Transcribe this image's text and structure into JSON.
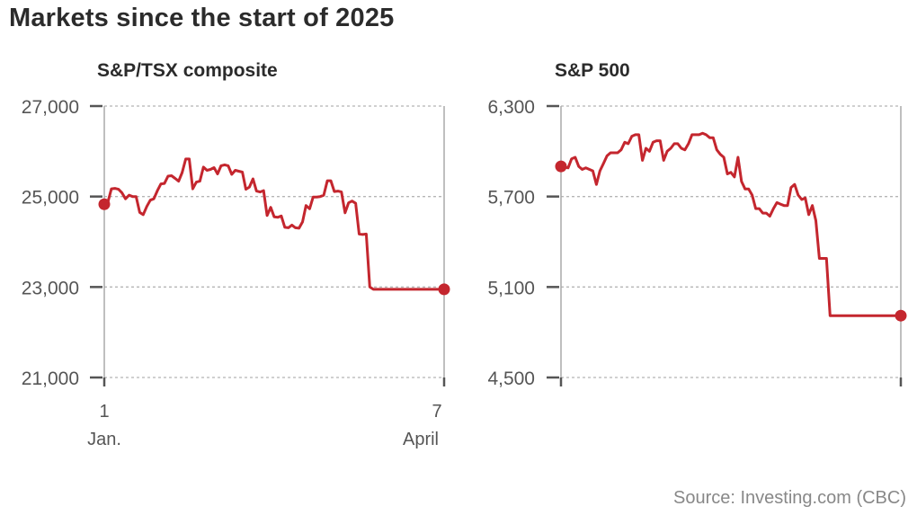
{
  "title": "Markets since the start of 2025",
  "source": "Source: Investing.com (CBC)",
  "colors": {
    "line": "#c4262e",
    "grid": "#b5b5b5",
    "text": "#2b2b2b"
  },
  "chart_data": [
    {
      "type": "line",
      "title": "S&P/TSX composite",
      "ylim": [
        21000,
        27000
      ],
      "yticks": [
        27000,
        25000,
        23000,
        21000
      ],
      "ytick_labels": [
        "27,000",
        "25,000",
        "23,000",
        "21,000"
      ],
      "xlim": [
        0,
        96
      ],
      "xticks": [
        {
          "x": 0,
          "day": "1",
          "month": "Jan."
        },
        {
          "x": 96,
          "day": "7",
          "month": "April"
        }
      ],
      "grid": true,
      "series": [
        {
          "x": [
            0,
            1,
            2,
            3,
            4,
            5,
            6,
            7,
            8,
            9,
            10,
            11,
            12,
            13,
            14,
            15,
            16,
            17,
            18,
            19,
            20,
            21,
            22,
            23,
            24,
            25,
            26,
            27,
            28,
            29,
            30,
            31,
            32,
            33,
            34,
            35,
            36,
            37,
            38,
            39,
            40,
            41,
            42,
            43,
            44,
            45,
            46,
            47,
            48,
            49,
            50,
            51,
            52,
            53,
            54,
            55,
            56,
            57,
            58,
            59,
            60,
            61,
            62,
            63,
            64,
            65,
            66,
            67,
            68,
            69,
            70,
            71,
            72,
            73,
            74,
            75,
            76,
            77,
            78,
            79,
            80,
            81,
            82,
            83,
            84,
            85,
            86,
            87,
            88,
            89,
            90,
            91,
            92,
            93,
            94,
            95,
            96
          ],
          "y": [
            24830,
            24870,
            25170,
            25180,
            25160,
            25080,
            24950,
            25030,
            25000,
            25000,
            24650,
            24600,
            24780,
            24920,
            24950,
            25130,
            25280,
            25290,
            25450,
            25460,
            25400,
            25340,
            25530,
            25830,
            25830,
            25170,
            25320,
            25340,
            25650,
            25580,
            25600,
            25640,
            25500,
            25680,
            25700,
            25680,
            25490,
            25580,
            25560,
            25540,
            25160,
            25210,
            25390,
            25120,
            25100,
            25130,
            24580,
            24760,
            24550,
            24540,
            24570,
            24320,
            24310,
            24370,
            24310,
            24300,
            24440,
            24800,
            24730,
            24990,
            24990,
            25000,
            25030,
            25350,
            25350,
            25110,
            25120,
            25100,
            24640,
            24860,
            24900,
            24850,
            24170,
            24160,
            24170,
            23000,
            22950,
            22950,
            22950,
            22950,
            22950,
            22950,
            22950,
            22950,
            22950,
            22950,
            22950,
            22950,
            22950,
            22950,
            22950,
            22950,
            22950,
            22950,
            22950,
            22950,
            22950
          ]
        }
      ],
      "end_value": 22950,
      "start_value": 24830
    },
    {
      "type": "line",
      "title": "S&P 500",
      "ylim": [
        4500,
        6300
      ],
      "yticks": [
        6300,
        5700,
        5100,
        4500
      ],
      "ytick_labels": [
        "6,300",
        "5,700",
        "5,100",
        "4,500"
      ],
      "xlim": [
        0,
        96
      ],
      "xticks": [
        {
          "x": 0,
          "day": "",
          "month": ""
        },
        {
          "x": 96,
          "day": "",
          "month": ""
        }
      ],
      "grid": true,
      "series": [
        {
          "x": [
            0,
            2,
            3,
            4,
            5,
            6,
            7,
            9,
            10,
            11,
            12,
            13,
            14,
            15,
            16,
            17,
            18,
            19,
            20,
            21,
            22,
            23,
            24,
            25,
            26,
            27,
            28,
            29,
            30,
            31,
            32,
            33,
            34,
            35,
            36,
            37,
            38,
            39,
            40,
            41,
            42,
            43,
            44,
            45,
            46,
            47,
            48,
            49,
            50,
            51,
            52,
            53,
            54,
            55,
            56,
            57,
            58,
            59,
            60,
            61,
            62,
            63,
            64,
            65,
            66,
            67,
            68,
            69,
            70,
            71,
            72,
            73,
            74,
            75,
            76,
            77,
            78,
            79,
            80,
            81,
            82,
            83,
            84,
            85,
            86,
            87,
            88,
            89,
            90,
            91,
            92,
            93,
            94,
            95,
            96
          ],
          "y": [
            5900,
            5890,
            5950,
            5960,
            5900,
            5880,
            5890,
            5870,
            5780,
            5870,
            5920,
            5970,
            5990,
            5990,
            5990,
            6010,
            6060,
            6050,
            6100,
            6110,
            6110,
            5940,
            6020,
            6000,
            6060,
            6070,
            6070,
            5940,
            6000,
            6020,
            6050,
            6050,
            6020,
            6010,
            6050,
            6110,
            6110,
            6110,
            6120,
            6110,
            6090,
            6090,
            6010,
            5980,
            5960,
            5850,
            5860,
            5830,
            5960,
            5800,
            5750,
            5750,
            5710,
            5620,
            5620,
            5590,
            5590,
            5570,
            5620,
            5660,
            5650,
            5640,
            5640,
            5760,
            5780,
            5710,
            5680,
            5690,
            5580,
            5640,
            5540,
            5290,
            5290,
            5290,
            4910,
            4910,
            4910,
            4910,
            4910,
            4910,
            4910,
            4910,
            4910,
            4910,
            4910,
            4910,
            4910,
            4910,
            4910,
            4910,
            4910,
            4910,
            4910,
            4910,
            4910
          ]
        }
      ],
      "end_value": 4910,
      "start_value": 5900
    }
  ]
}
